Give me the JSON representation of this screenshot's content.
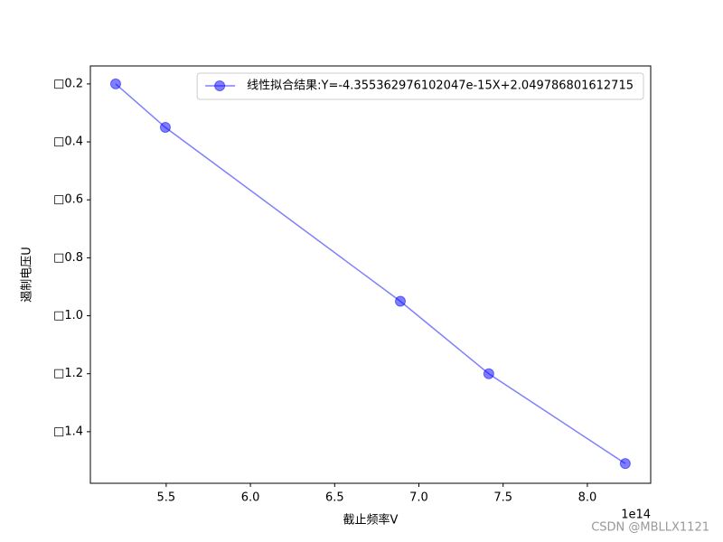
{
  "chart_data": {
    "type": "line",
    "x_label": "截止频率V",
    "y_label": "遏制电压U",
    "x_offset_label": "1e14",
    "x": [
      5.2,
      5.495,
      6.89,
      7.415,
      8.225
    ],
    "series": [
      {
        "name": "线性拟合结果:Y=-4.355362976102047e-15X+2.049786801612715",
        "color": "#0000ff",
        "values": [
          -0.2,
          -0.35,
          -0.95,
          -1.2,
          -1.51
        ]
      }
    ],
    "xlim": [
      5.05,
      8.376
    ],
    "xticks": [
      5.5,
      {
        "value": 6,
        "label": "6.0"
      },
      6.5,
      {
        "value": 7,
        "label": "7.0"
      },
      7.5,
      {
        "value": 8,
        "label": "8.0"
      }
    ],
    "ylim": [
      -1.578,
      -0.138
    ],
    "yticks": [
      {
        "value": -0.2,
        "label": "□0.2"
      },
      {
        "value": -0.4,
        "label": "□0.4"
      },
      {
        "value": -0.6,
        "label": "□0.6"
      },
      {
        "value": -0.8,
        "label": "□0.8"
      },
      {
        "value": -1.0,
        "label": "□1.0"
      },
      {
        "value": -1.2,
        "label": "□1.2"
      },
      {
        "value": -1.4,
        "label": "□1.4"
      }
    ],
    "legend": "upper right",
    "grid": false,
    "watermark": "CSDN @MBLLX1121"
  }
}
